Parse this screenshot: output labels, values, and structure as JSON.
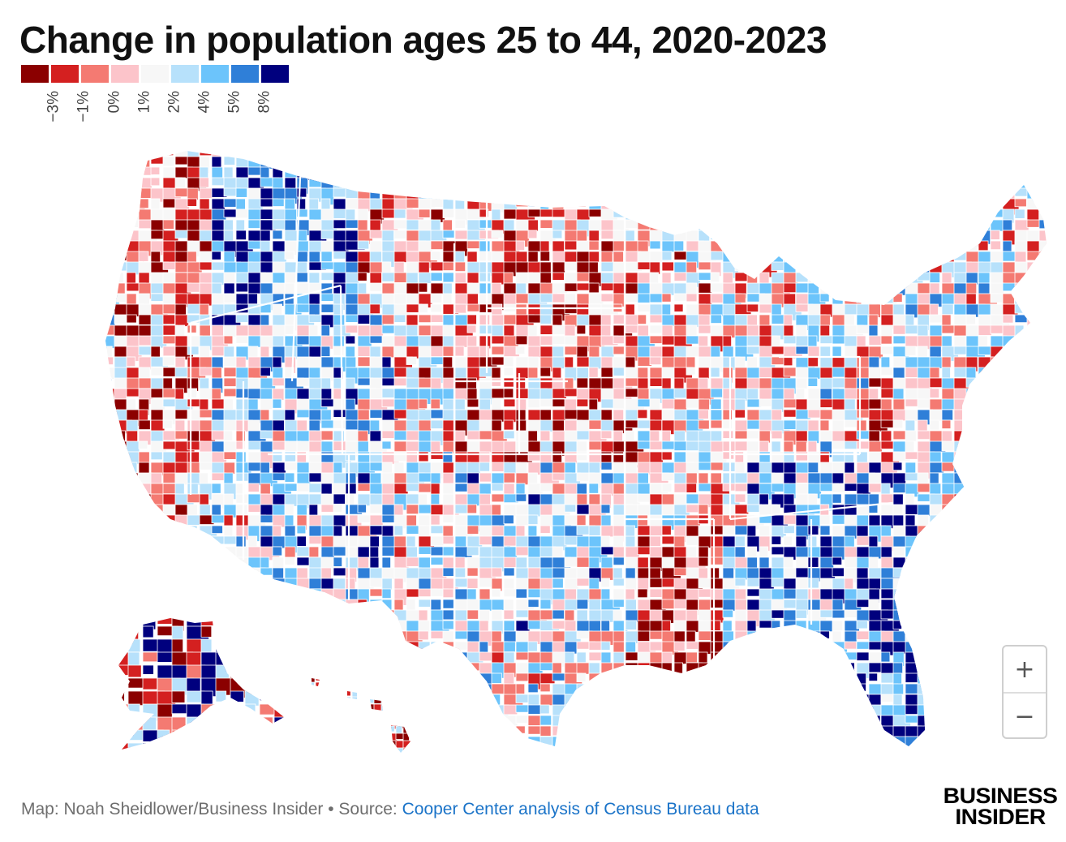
{
  "title": "Change in population ages 25 to 44, 2020-2023",
  "legend": {
    "colors": [
      "#8b0000",
      "#d42020",
      "#f47a72",
      "#fcc4ca",
      "#f7f7f7",
      "#b7e1fb",
      "#6cc4fb",
      "#2f7fd8",
      "#00007e"
    ],
    "labels": [
      "−3%",
      "−1%",
      "0%",
      "1%",
      "2%",
      "4%",
      "5%",
      "8%"
    ]
  },
  "map": {
    "region": "United States counties",
    "no_data_color": "#d9d9d9",
    "border_color": "#ffffff"
  },
  "zoom": {
    "in_label": "+",
    "out_label": "−"
  },
  "footer": {
    "credit": "Map: Noah Sheidlower/Business Insider • Source: ",
    "source_link": "Cooper Center analysis of Census Bureau data"
  },
  "logo": {
    "line1": "BUSINESS",
    "line2": "INSIDER"
  }
}
